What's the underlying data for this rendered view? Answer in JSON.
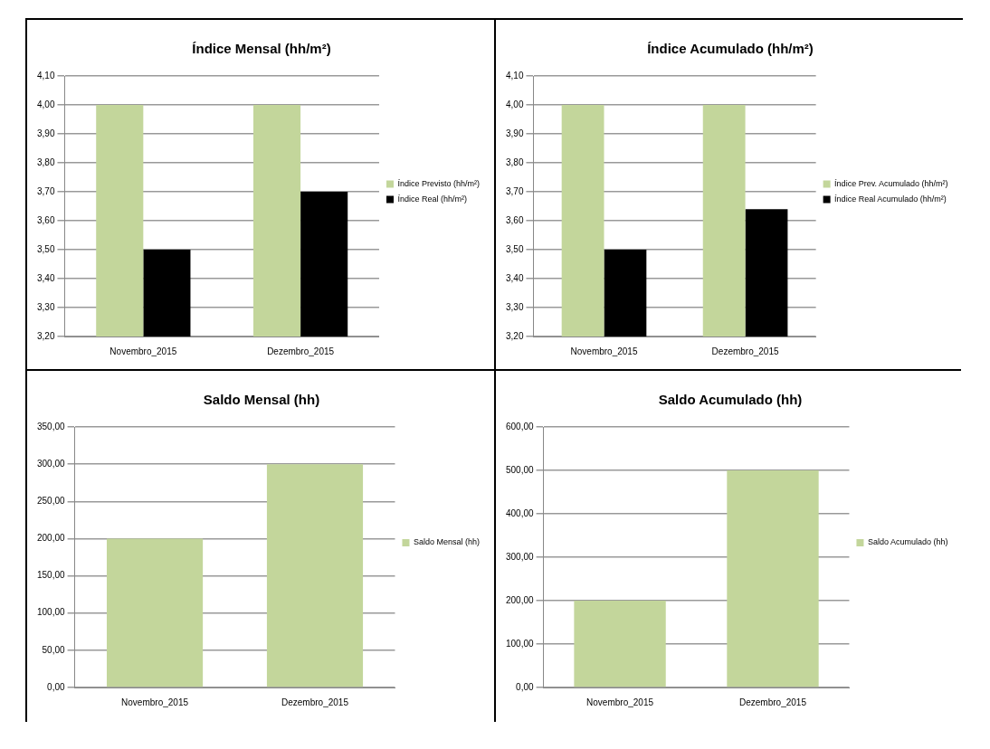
{
  "chart_data": [
    {
      "type": "bar",
      "title": "Índice Mensal (hh/m²)",
      "categories": [
        "Novembro_2015",
        "Dezembro_2015"
      ],
      "series": [
        {
          "name": "Índice Previsto (hh/m²)",
          "color": "#c3d69b",
          "values": [
            4.0,
            4.0
          ]
        },
        {
          "name": "Índice Real (hh/m²)",
          "color": "#000000",
          "values": [
            3.5,
            3.7
          ]
        }
      ],
      "ylim": [
        3.2,
        4.1
      ],
      "yticks": [
        {
          "value": 3.2,
          "label": "3,20"
        },
        {
          "value": 3.3,
          "label": "3,30"
        },
        {
          "value": 3.4,
          "label": "3,40"
        },
        {
          "value": 3.5,
          "label": "3,50"
        },
        {
          "value": 3.6,
          "label": "3,60"
        },
        {
          "value": 3.7,
          "label": "3,70"
        },
        {
          "value": 3.8,
          "label": "3,80"
        },
        {
          "value": 3.9,
          "label": "3,90"
        },
        {
          "value": 4.0,
          "label": "4,00"
        },
        {
          "value": 4.1,
          "label": "4,10"
        }
      ],
      "grid": "y",
      "legend": "right"
    },
    {
      "type": "bar",
      "title": "Índice Acumulado (hh/m²)",
      "categories": [
        "Novembro_2015",
        "Dezembro_2015"
      ],
      "series": [
        {
          "name": "Índice Prev. Acumulado (hh/m²)",
          "color": "#c3d69b",
          "values": [
            4.0,
            4.0
          ]
        },
        {
          "name": "Índice Real Acumulado (hh/m²)",
          "color": "#000000",
          "values": [
            3.5,
            3.64
          ]
        }
      ],
      "ylim": [
        3.2,
        4.1
      ],
      "yticks": [
        {
          "value": 3.2,
          "label": "3,20"
        },
        {
          "value": 3.3,
          "label": "3,30"
        },
        {
          "value": 3.4,
          "label": "3,40"
        },
        {
          "value": 3.5,
          "label": "3,50"
        },
        {
          "value": 3.6,
          "label": "3,60"
        },
        {
          "value": 3.7,
          "label": "3,70"
        },
        {
          "value": 3.8,
          "label": "3,80"
        },
        {
          "value": 3.9,
          "label": "3,90"
        },
        {
          "value": 4.0,
          "label": "4,00"
        },
        {
          "value": 4.1,
          "label": "4,10"
        }
      ],
      "grid": "y",
      "legend": "right"
    },
    {
      "type": "bar",
      "title": "Saldo Mensal (hh)",
      "categories": [
        "Novembro_2015",
        "Dezembro_2015"
      ],
      "series": [
        {
          "name": "Saldo Mensal (hh)",
          "color": "#c3d69b",
          "values": [
            200,
            300
          ]
        }
      ],
      "ylim": [
        0,
        350
      ],
      "yticks": [
        {
          "value": 0,
          "label": "0,00"
        },
        {
          "value": 50,
          "label": "50,00"
        },
        {
          "value": 100,
          "label": "100,00"
        },
        {
          "value": 150,
          "label": "150,00"
        },
        {
          "value": 200,
          "label": "200,00"
        },
        {
          "value": 250,
          "label": "250,00"
        },
        {
          "value": 300,
          "label": "300,00"
        },
        {
          "value": 350,
          "label": "350,00"
        }
      ],
      "grid": "y",
      "legend": "right"
    },
    {
      "type": "bar",
      "title": "Saldo Acumulado (hh)",
      "categories": [
        "Novembro_2015",
        "Dezembro_2015"
      ],
      "series": [
        {
          "name": "Saldo Acumulado (hh)",
          "color": "#c3d69b",
          "values": [
            200,
            500
          ]
        }
      ],
      "ylim": [
        0,
        600
      ],
      "yticks": [
        {
          "value": 0,
          "label": "0,00"
        },
        {
          "value": 100,
          "label": "100,00"
        },
        {
          "value": 200,
          "label": "200,00"
        },
        {
          "value": 300,
          "label": "300,00"
        },
        {
          "value": 400,
          "label": "400,00"
        },
        {
          "value": 500,
          "label": "500,00"
        },
        {
          "value": 600,
          "label": "600,00"
        }
      ],
      "grid": "y",
      "legend": "right"
    }
  ]
}
